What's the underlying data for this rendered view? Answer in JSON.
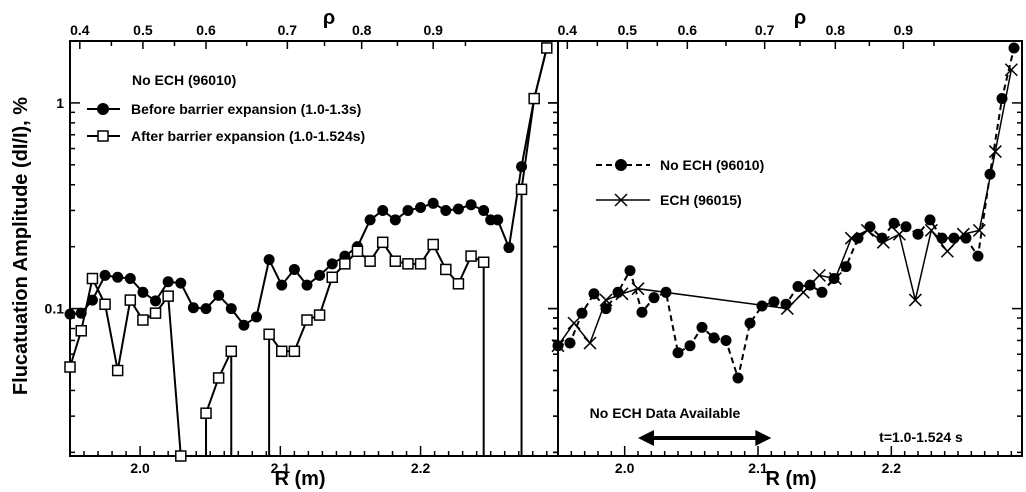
{
  "ylabel": "Flucatuation Amplitude (dI/I), %",
  "chart_data": [
    {
      "type": "line",
      "xlabel": "R (m)",
      "top_xlabel": "ρ",
      "xlim": [
        1.95,
        2.298
      ],
      "ylim": [
        0.0192,
        2.0
      ],
      "yscale": "log",
      "grid": false,
      "xticks": [
        "2.0",
        "2.1",
        "2.2"
      ],
      "yticks": [
        "0.1",
        "1"
      ],
      "top_xticks": [
        "0.4",
        "0.5",
        "0.6",
        "0.7",
        "0.8",
        "0.9"
      ],
      "legend_title": "No ECH (96010)",
      "legend_position": "top-left",
      "series": [
        {
          "name": "Before barrier expansion (1.0-1.3s)",
          "marker": "filled-circle",
          "line": "solid",
          "x": [
            1.95,
            1.958,
            1.966,
            1.975,
            1.984,
            1.993,
            2.002,
            2.011,
            2.02,
            2.029,
            2.038,
            2.047,
            2.056,
            2.065,
            2.074,
            2.083,
            2.092,
            2.101,
            2.11,
            2.119,
            2.128,
            2.137,
            2.146,
            2.155,
            2.164,
            2.173,
            2.182,
            2.191,
            2.2,
            2.209,
            2.218,
            2.227,
            2.236,
            2.245,
            2.25,
            2.255,
            2.263,
            2.272,
            2.281,
            2.29
          ],
          "y": [
            0.094,
            0.095,
            0.11,
            0.145,
            0.142,
            0.14,
            0.12,
            0.109,
            0.135,
            0.133,
            0.101,
            0.1,
            0.116,
            0.1,
            0.083,
            0.091,
            0.173,
            0.13,
            0.155,
            0.13,
            0.145,
            0.165,
            0.18,
            0.2,
            0.27,
            0.3,
            0.27,
            0.3,
            0.31,
            0.325,
            0.3,
            0.305,
            0.32,
            0.3,
            0.27,
            0.27,
            0.198,
            0.49,
            1.05,
            1.85
          ]
        },
        {
          "name": "After barrier expansion (1.0-1.524s)",
          "marker": "open-square",
          "line": "solid",
          "x": [
            1.95,
            1.958,
            1.966,
            1.975,
            1.984,
            1.993,
            2.002,
            2.011,
            2.02,
            2.029,
            2.038,
            2.047,
            2.056,
            2.065,
            2.074,
            2.083,
            2.092,
            2.101,
            2.11,
            2.119,
            2.128,
            2.137,
            2.146,
            2.155,
            2.164,
            2.173,
            2.182,
            2.191,
            2.2,
            2.209,
            2.218,
            2.227,
            2.236,
            2.245,
            2.25,
            2.255,
            2.263,
            2.272,
            2.281,
            2.29
          ],
          "y": [
            0.052,
            0.078,
            0.14,
            0.105,
            0.05,
            0.11,
            0.088,
            0.095,
            0.115,
            0.0192,
            null,
            0.031,
            0.046,
            0.062,
            null,
            null,
            0.075,
            0.062,
            0.062,
            0.088,
            0.093,
            0.142,
            0.165,
            0.19,
            0.17,
            0.21,
            0.17,
            0.165,
            0.165,
            0.205,
            0.155,
            0.132,
            0.18,
            0.168,
            null,
            null,
            null,
            0.38,
            1.05,
            1.85
          ]
        }
      ]
    },
    {
      "type": "line",
      "xlabel": "R (m)",
      "top_xlabel": "ρ",
      "xlim": [
        1.95,
        2.298
      ],
      "ylim": [
        0.0192,
        2.0
      ],
      "yscale": "log",
      "grid": false,
      "xticks": [
        "2.0",
        "2.1",
        "2.2"
      ],
      "yticks": [
        "0.1",
        "1"
      ],
      "top_xticks": [
        "0.4",
        "0.5",
        "0.6",
        "0.7",
        "0.8",
        "0.9"
      ],
      "legend_position": "top-left",
      "annotation": "No ECH Data Available",
      "annotation_range": [
        2.01,
        2.11
      ],
      "time_note": "t=1.0-1.524 s",
      "series": [
        {
          "name": "No ECH (96010)",
          "marker": "filled-circle",
          "line": "dashed",
          "x": [
            1.95,
            1.959,
            1.968,
            1.977,
            1.986,
            1.995,
            2.004,
            2.013,
            2.022,
            2.031,
            2.04,
            2.049,
            2.058,
            2.067,
            2.076,
            2.085,
            2.094,
            2.103,
            2.112,
            2.121,
            2.13,
            2.139,
            2.148,
            2.157,
            2.166,
            2.175,
            2.184,
            2.193,
            2.202,
            2.211,
            2.22,
            2.229,
            2.238,
            2.247,
            2.256,
            2.265,
            2.274,
            2.283,
            2.292
          ],
          "y": [
            0.066,
            0.068,
            0.095,
            0.118,
            0.1,
            0.12,
            0.153,
            0.096,
            0.113,
            0.12,
            0.061,
            0.066,
            0.081,
            0.072,
            0.07,
            0.046,
            0.085,
            0.103,
            0.108,
            0.105,
            0.128,
            0.13,
            0.12,
            0.14,
            0.16,
            0.22,
            0.25,
            0.22,
            0.26,
            0.25,
            0.23,
            0.27,
            0.22,
            0.22,
            0.22,
            0.18,
            0.45,
            1.05,
            1.85
          ]
        },
        {
          "name": "ECH (96015)",
          "marker": "x",
          "line": "solid",
          "x": [
            1.95,
            1.962,
            1.974,
            1.986,
            1.998,
            2.01,
            2.122,
            2.134,
            2.146,
            2.158,
            2.17,
            2.182,
            2.194,
            2.206,
            2.218,
            2.23,
            2.242,
            2.254,
            2.266,
            2.278,
            2.29
          ],
          "y": [
            0.066,
            0.085,
            0.068,
            0.11,
            0.118,
            0.125,
            0.1,
            0.12,
            0.145,
            0.14,
            0.22,
            0.24,
            0.21,
            0.23,
            0.11,
            0.24,
            0.19,
            0.23,
            0.24,
            0.58,
            1.45
          ]
        }
      ]
    }
  ]
}
